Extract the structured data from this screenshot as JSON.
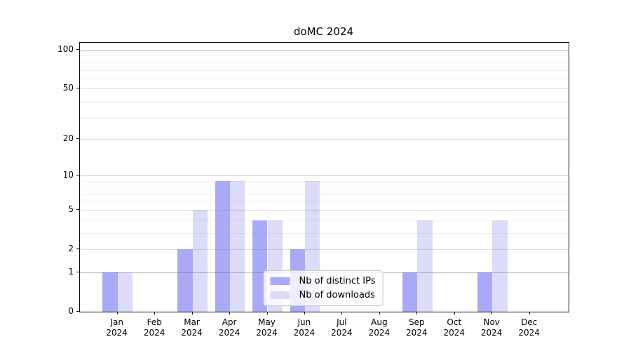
{
  "figure": {
    "background": "#ffffff",
    "spine_color": "#0d0d0d"
  },
  "chart_data": {
    "type": "bar",
    "title": "doMC 2024",
    "x_months": [
      "Jan",
      "Feb",
      "Mar",
      "Apr",
      "May",
      "Jun",
      "Jul",
      "Aug",
      "Sep",
      "Oct",
      "Nov",
      "Dec"
    ],
    "x_year": "2024",
    "series": [
      {
        "name": "Nb of distinct IPs",
        "color": "#a9aaf7",
        "values": [
          1,
          0,
          2,
          9,
          4,
          2,
          0,
          0,
          1,
          0,
          1,
          0
        ]
      },
      {
        "name": "Nb of downloads",
        "color": "#dcdcf8",
        "values": [
          1,
          0,
          5,
          9,
          4,
          9,
          0,
          0,
          4,
          0,
          4,
          0
        ]
      }
    ],
    "y_scale": "log1p",
    "y_ticks": [
      {
        "label": "0",
        "value": 0
      },
      {
        "label": "1",
        "value": 1
      },
      {
        "label": "2",
        "value": 2
      },
      {
        "label": "5",
        "value": 5
      },
      {
        "label": "10",
        "value": 10
      },
      {
        "label": "20",
        "value": 20
      },
      {
        "label": "50",
        "value": 50
      },
      {
        "label": "100",
        "value": 100
      }
    ],
    "grid": true,
    "gridlines": {
      "major_values": [
        1,
        10,
        100
      ],
      "mid_values": [
        2,
        5,
        20,
        50
      ],
      "minor_values": [
        3,
        4,
        6,
        7,
        8,
        9,
        30,
        40,
        60,
        70,
        80,
        90
      ],
      "major_color": "rgba(105,105,105,0.42)",
      "mid_color": "rgba(125,125,125,0.26)",
      "minor_color": "rgba(140,140,140,0.13)"
    },
    "legend_position": "lower center"
  }
}
